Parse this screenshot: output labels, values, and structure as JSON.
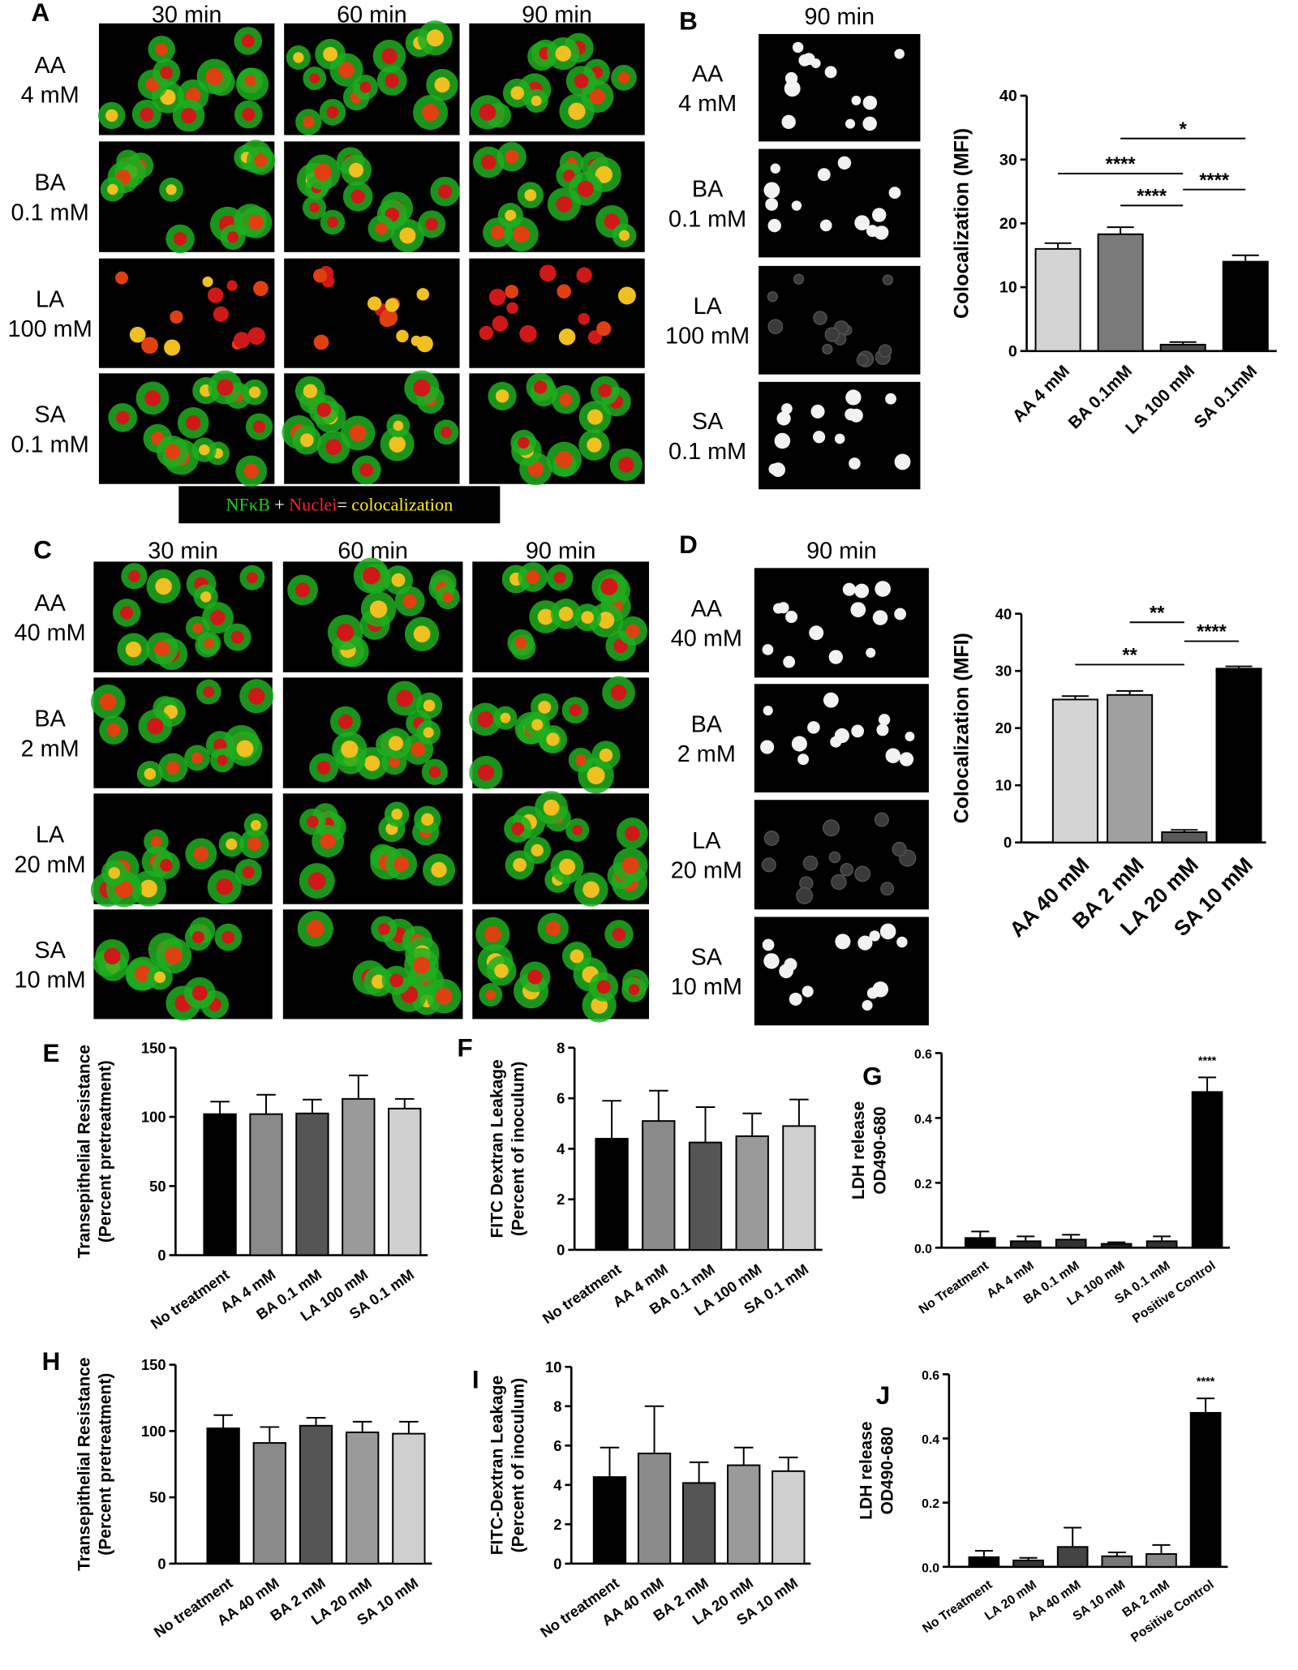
{
  "microscopy": [
    {
      "label": "A",
      "columns": [
        "30 min",
        "60 min",
        "90 min"
      ],
      "rows": [
        [
          "AA",
          "4 mM"
        ],
        [
          "BA",
          "0.1 mM"
        ],
        [
          "LA",
          "100 mM"
        ],
        [
          "SA",
          "0.1 mM"
        ]
      ]
    },
    {
      "label": "B",
      "columns": [
        "90 min"
      ],
      "rows": [
        [
          "AA",
          "4 mM"
        ],
        [
          "BA",
          "0.1 mM"
        ],
        [
          "LA",
          "100 mM"
        ],
        [
          "SA",
          "0.1 mM"
        ]
      ]
    },
    {
      "label": "C",
      "columns": [
        "30 min",
        "60 min",
        "90 min"
      ],
      "rows": [
        [
          "AA",
          "40 mM"
        ],
        [
          "BA",
          "2 mM"
        ],
        [
          "LA",
          "20 mM"
        ],
        [
          "SA",
          "10 mM"
        ]
      ]
    },
    {
      "label": "D",
      "columns": [
        "90 min"
      ],
      "rows": [
        [
          "AA",
          "40 mM"
        ],
        [
          "BA",
          "2 mM"
        ],
        [
          "LA",
          "20 mM"
        ],
        [
          "SA",
          "10 mM"
        ]
      ]
    }
  ],
  "legend": {
    "parts": [
      "NFκB",
      "+",
      "Nuclei",
      "=",
      "colocalization"
    ]
  },
  "chart_data": [
    {
      "type": "bar",
      "ylabel": [
        "Colocalization (MFI)"
      ],
      "categories": [
        "AA 4 mM",
        "BA 0.1mM",
        "LA 100 mM",
        "SA 0.1mM"
      ],
      "values": [
        16,
        18.3,
        1,
        14
      ],
      "errors": [
        0.9,
        1.1,
        0.4,
        1.0
      ],
      "colors": [
        "#d4d4d4",
        "#7a7a7a",
        "#4a4a4a",
        "#000000"
      ],
      "ylim": [
        0,
        40
      ],
      "yticks": [
        0,
        10,
        20,
        30,
        40
      ],
      "annotations": [
        {
          "text": "*",
          "from": 1,
          "to": 3,
          "y": 33.3
        },
        {
          "text": "****",
          "from": 0,
          "to": 2,
          "y": 27.8
        },
        {
          "text": "****",
          "from": 2,
          "to": 3,
          "y": 25.3
        },
        {
          "text": "****",
          "from": 1,
          "to": 2,
          "y": 22.8
        }
      ]
    },
    {
      "type": "bar",
      "ylabel": [
        "Colocalization (MFI)"
      ],
      "categories": [
        "AA 40 mM",
        "BA 2 mM",
        "LA 20 mM",
        "SA 10 mM"
      ],
      "values": [
        25,
        25.8,
        1.8,
        30.4
      ],
      "errors": [
        0.6,
        0.7,
        0.4,
        0.4
      ],
      "colors": [
        "#d4d4d4",
        "#a0a0a0",
        "#5a5a5a",
        "#000000"
      ],
      "ylim": [
        0,
        40
      ],
      "yticks": [
        0,
        10,
        20,
        30,
        40
      ],
      "annotations": [
        {
          "text": "**",
          "from": 1,
          "to": 2,
          "y": 38.5
        },
        {
          "text": "****",
          "from": 2,
          "to": 3,
          "y": 35.2
        },
        {
          "text": "**",
          "from": 0,
          "to": 2,
          "y": 31.1
        }
      ]
    },
    {
      "type": "bar",
      "label": "E",
      "ylabel": [
        "Transepithelial Resistance",
        "(Percent pretreatment)"
      ],
      "categories": [
        "No treatment",
        "AA 4 mM",
        "BA 0.1 mM",
        "LA 100 mM",
        "SA 0.1 mM"
      ],
      "values": [
        102,
        102,
        102.5,
        113,
        106
      ],
      "errors": [
        9,
        14,
        10,
        17,
        7
      ],
      "colors": [
        "#000000",
        "#8a8a8a",
        "#555555",
        "#9a9a9a",
        "#cfcfcf"
      ],
      "ylim": [
        0,
        150
      ],
      "yticks": [
        0,
        50,
        100,
        150
      ]
    },
    {
      "type": "bar",
      "label": "F",
      "ylabel": [
        "FITC Dextran Leakage",
        "(Percent of inoculum)"
      ],
      "categories": [
        "No treatment",
        "AA 4 mM",
        "BA 0.1 mM",
        "LA 100 mM",
        "SA 0.1 mM"
      ],
      "values": [
        4.4,
        5.1,
        4.25,
        4.5,
        4.9
      ],
      "errors": [
        1.5,
        1.2,
        1.4,
        0.9,
        1.05
      ],
      "colors": [
        "#000000",
        "#8a8a8a",
        "#555555",
        "#9a9a9a",
        "#cfcfcf"
      ],
      "ylim": [
        0,
        8
      ],
      "yticks": [
        0,
        2,
        4,
        6,
        8
      ]
    },
    {
      "type": "bar",
      "label": "G",
      "ylabel": [
        "LDH release",
        "OD490-680"
      ],
      "categories": [
        "No Treatment",
        "AA 4 mM",
        "BA 0.1 mM",
        "LA 100 mM",
        "SA 0.1 mM",
        "Positive Control"
      ],
      "values": [
        0.03,
        0.02,
        0.025,
        0.012,
        0.02,
        0.48
      ],
      "errors": [
        0.02,
        0.015,
        0.015,
        0.005,
        0.015,
        0.045
      ],
      "colors": [
        "#000000",
        "#222222",
        "#333333",
        "#222222",
        "#333333",
        "#000000"
      ],
      "ylim": [
        0,
        0.6
      ],
      "yticks": [
        {
          "value": 0,
          "label": "0.0"
        },
        0.2,
        0.4,
        0.6
      ],
      "annotations": [
        {
          "text": "****",
          "from": 5,
          "to": 5,
          "y": 0.565
        }
      ]
    },
    {
      "type": "bar",
      "label": "H",
      "ylabel": [
        "Transepithelial Resistance",
        "(Percent pretreatment)"
      ],
      "categories": [
        "No treatment",
        "AA 40 mM",
        "BA 2 mM",
        "LA 20 mM",
        "SA 10 mM"
      ],
      "values": [
        102,
        91,
        104,
        99,
        98
      ],
      "errors": [
        10,
        12,
        6,
        8,
        9
      ],
      "colors": [
        "#000000",
        "#8a8a8a",
        "#555555",
        "#9a9a9a",
        "#cfcfcf"
      ],
      "ylim": [
        0,
        150
      ],
      "yticks": [
        0,
        50,
        100,
        150
      ]
    },
    {
      "type": "bar",
      "label": "I",
      "ylabel": [
        "FITC-Dextran Leakage",
        "(Percent of inoculum)"
      ],
      "categories": [
        "No treatment",
        "AA 40 mM",
        "BA 2 mM",
        "LA 20 mM",
        "SA 10 mM"
      ],
      "values": [
        4.4,
        5.6,
        4.1,
        5.0,
        4.7
      ],
      "errors": [
        1.5,
        2.4,
        1.05,
        0.9,
        0.7
      ],
      "colors": [
        "#000000",
        "#8a8a8a",
        "#555555",
        "#9a9a9a",
        "#cfcfcf"
      ],
      "ylim": [
        0,
        10
      ],
      "yticks": [
        0,
        2,
        4,
        6,
        8,
        10
      ]
    },
    {
      "type": "bar",
      "label": "J",
      "ylabel": [
        "LDH release",
        "OD490-680"
      ],
      "categories": [
        "No Treatment",
        "LA 20 mM",
        "AA 40 mM",
        "SA 10 mM",
        "BA 2 mM",
        "Positive Control"
      ],
      "values": [
        0.03,
        0.02,
        0.062,
        0.033,
        0.04,
        0.48
      ],
      "errors": [
        0.02,
        0.008,
        0.06,
        0.012,
        0.028,
        0.045
      ],
      "colors": [
        "#000000",
        "#333333",
        "#444444",
        "#777777",
        "#888888",
        "#000000"
      ],
      "ylim": [
        0,
        0.6
      ],
      "yticks": [
        {
          "value": 0,
          "label": "0.0"
        },
        0.2,
        0.4,
        0.6
      ],
      "annotations": [
        {
          "text": "****",
          "from": 5,
          "to": 5,
          "y": 0.565
        }
      ]
    }
  ]
}
